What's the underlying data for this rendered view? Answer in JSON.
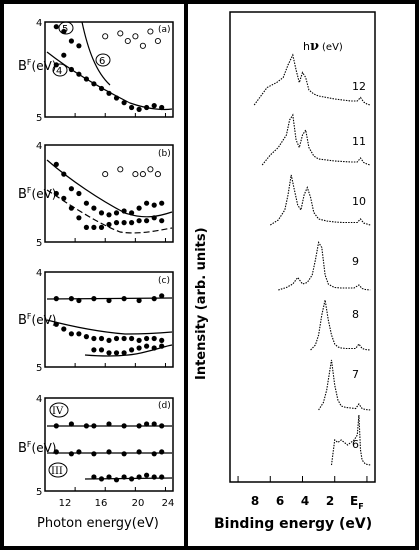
{
  "left_figure": {
    "xlabel": "Photon energy(eV)",
    "ylabel_main": "B",
    "ylabel_sup": "F",
    "ylabel_unit": "(eV)",
    "x_ticks": [
      "12",
      "16",
      "20",
      "24"
    ],
    "y_ticks": [
      "4",
      "5"
    ]
  },
  "right_figure": {
    "ylabel": "Intensity (arb. units)",
    "xlabel": "Binding energy (eV)",
    "x_ticks": [
      "8",
      "6",
      "4",
      "2",
      "E"
    ],
    "ef_sub": "F",
    "legend_prefix": "h",
    "legend_nu": "ν",
    "legend_unit": "(eV)"
  },
  "chart_data": [
    {
      "type": "scatter",
      "panel": "(a)",
      "xlim": [
        8,
        25
      ],
      "ylim": [
        5,
        4
      ],
      "annotations": [
        "5",
        "4",
        "6"
      ],
      "series": [
        {
          "marker": "filled",
          "x": [
            9.5,
            10.5,
            11.5,
            12.5,
            13.5,
            14.5,
            15.5,
            16.5,
            17.5,
            18.5,
            19.5,
            20.5,
            21.5,
            22.5,
            23.5
          ],
          "y": [
            4.45,
            4.35,
            4.5,
            4.55,
            4.6,
            4.65,
            4.7,
            4.75,
            4.8,
            4.85,
            4.9,
            4.92,
            4.9,
            4.88,
            4.9
          ]
        },
        {
          "marker": "filled",
          "x": [
            9.5,
            10.5,
            11.5,
            12.5
          ],
          "y": [
            4.05,
            4.1,
            4.2,
            4.25
          ]
        },
        {
          "marker": "open",
          "x": [
            16,
            18,
            19,
            20,
            21,
            22,
            23
          ],
          "y": [
            4.15,
            4.12,
            4.2,
            4.15,
            4.25,
            4.1,
            4.2
          ]
        }
      ]
    },
    {
      "type": "scatter",
      "panel": "(b)",
      "xlim": [
        8,
        25
      ],
      "ylim": [
        5,
        4
      ],
      "series": [
        {
          "marker": "filled",
          "x": [
            9.5,
            10.5,
            11.5,
            12.5,
            13.5,
            14.5,
            15.5,
            16.5,
            17.5,
            18.5,
            19.5,
            20.5,
            21.5,
            22.5,
            23.5
          ],
          "y": [
            4.2,
            4.3,
            4.45,
            4.5,
            4.6,
            4.65,
            4.7,
            4.72,
            4.7,
            4.68,
            4.7,
            4.65,
            4.6,
            4.62,
            4.6
          ]
        },
        {
          "marker": "filled",
          "x": [
            9.5,
            10.5,
            11.5,
            12.5,
            13.5,
            14.5,
            15.5,
            16.5,
            17.5,
            18.5,
            19.5,
            20.5,
            21.5,
            22.5,
            23.5
          ],
          "y": [
            4.5,
            4.55,
            4.65,
            4.75,
            4.85,
            4.85,
            4.85,
            4.82,
            4.8,
            4.8,
            4.8,
            4.78,
            4.78,
            4.75,
            4.78
          ]
        },
        {
          "marker": "open",
          "x": [
            16,
            18,
            20,
            21,
            22,
            23
          ],
          "y": [
            4.3,
            4.25,
            4.3,
            4.3,
            4.25,
            4.3
          ]
        }
      ]
    },
    {
      "type": "scatter",
      "panel": "(c)",
      "xlim": [
        8,
        25
      ],
      "ylim": [
        5,
        4
      ],
      "series": [
        {
          "marker": "filled",
          "x": [
            9.5,
            11.5,
            12.5,
            14.5,
            16.5,
            18.5,
            20.5,
            22.5,
            23.5
          ],
          "y": [
            4.28,
            4.28,
            4.3,
            4.28,
            4.3,
            4.28,
            4.3,
            4.28,
            4.25
          ]
        },
        {
          "marker": "filled",
          "x": [
            9.5,
            10.5,
            11.5,
            12.5,
            13.5,
            14.5,
            15.5,
            16.5,
            17.5,
            18.5,
            19.5,
            20.5,
            21.5,
            22.5,
            23.5
          ],
          "y": [
            4.55,
            4.6,
            4.65,
            4.65,
            4.68,
            4.7,
            4.7,
            4.72,
            4.7,
            4.7,
            4.7,
            4.72,
            4.7,
            4.7,
            4.72
          ]
        },
        {
          "marker": "filled",
          "x": [
            14.5,
            15.5,
            16.5,
            17.5,
            18.5,
            19.5,
            20.5,
            21.5,
            22.5,
            23.5
          ],
          "y": [
            4.82,
            4.82,
            4.85,
            4.85,
            4.85,
            4.82,
            4.8,
            4.78,
            4.8,
            4.78
          ]
        }
      ]
    },
    {
      "type": "scatter",
      "panel": "(d)",
      "xlim": [
        8,
        25
      ],
      "ylim": [
        5,
        4
      ],
      "annotations": [
        "IV",
        "III"
      ],
      "series": [
        {
          "marker": "filled",
          "x": [
            9.5,
            11.5,
            13.5,
            14.5,
            16.5,
            18.5,
            20.5,
            21.5,
            22.5,
            23.5
          ],
          "y": [
            4.3,
            4.28,
            4.3,
            4.3,
            4.28,
            4.3,
            4.3,
            4.28,
            4.28,
            4.3
          ]
        },
        {
          "marker": "filled",
          "x": [
            9.5,
            11.5,
            12.5,
            14.5,
            16.5,
            18.5,
            20.5,
            22.5,
            23.5
          ],
          "y": [
            4.58,
            4.6,
            4.58,
            4.6,
            4.58,
            4.6,
            4.58,
            4.6,
            4.58
          ]
        },
        {
          "marker": "filled",
          "x": [
            14.5,
            15.5,
            16.5,
            17.5,
            18.5,
            19.5,
            20.5,
            21.5,
            22.5,
            23.5
          ],
          "y": [
            4.85,
            4.87,
            4.85,
            4.88,
            4.85,
            4.87,
            4.85,
            4.83,
            4.85,
            4.85
          ]
        }
      ]
    },
    {
      "type": "line",
      "title": "",
      "xlabel": "Binding energy (eV)",
      "ylabel": "Intensity (arb. units)",
      "xlim": [
        8.5,
        -0.5
      ],
      "x_ticks": [
        8,
        6,
        4,
        2,
        0
      ],
      "series": [
        {
          "name": "12",
          "x": [
            7.0,
            6.2,
            5.6,
            5.2,
            4.9,
            4.6,
            4.4,
            4.2,
            4.0,
            3.8,
            3.6,
            3.3,
            3.0,
            2.5,
            2.0,
            1.5,
            1.0,
            0.6,
            0.4,
            0.2,
            0.0,
            -0.2
          ],
          "y": [
            0.0,
            0.35,
            0.45,
            0.55,
            0.8,
            1.0,
            0.7,
            0.45,
            0.65,
            0.55,
            0.3,
            0.22,
            0.18,
            0.15,
            0.12,
            0.1,
            0.08,
            0.08,
            0.15,
            0.06,
            0.02,
            0.0
          ]
        },
        {
          "name": "11",
          "x": [
            6.5,
            6.0,
            5.5,
            5.0,
            4.8,
            4.6,
            4.4,
            4.2,
            4.0,
            3.8,
            3.6,
            3.3,
            3.0,
            2.5,
            2.0,
            1.5,
            1.0,
            0.6,
            0.4,
            0.2,
            0.0,
            -0.2
          ],
          "y": [
            0.0,
            0.2,
            0.35,
            0.6,
            0.9,
            1.0,
            0.5,
            0.35,
            0.6,
            0.7,
            0.35,
            0.18,
            0.12,
            0.1,
            0.08,
            0.07,
            0.06,
            0.06,
            0.14,
            0.05,
            0.02,
            0.0
          ]
        },
        {
          "name": "10",
          "x": [
            6.0,
            5.5,
            5.1,
            4.9,
            4.7,
            4.5,
            4.3,
            4.1,
            3.9,
            3.7,
            3.5,
            3.3,
            3.0,
            2.5,
            2.0,
            1.5,
            1.0,
            0.6,
            0.4,
            0.2,
            0.0,
            -0.2
          ],
          "y": [
            0.0,
            0.1,
            0.3,
            0.6,
            1.0,
            0.7,
            0.4,
            0.3,
            0.6,
            0.75,
            0.55,
            0.25,
            0.12,
            0.08,
            0.06,
            0.05,
            0.05,
            0.05,
            0.12,
            0.04,
            0.02,
            0.0
          ]
        },
        {
          "name": "9",
          "x": [
            5.5,
            5.0,
            4.6,
            4.3,
            4.0,
            3.7,
            3.4,
            3.2,
            3.0,
            2.8,
            2.6,
            2.4,
            2.2,
            2.0,
            1.6,
            1.2,
            0.8,
            0.5,
            0.3,
            0.1,
            -0.2
          ],
          "y": [
            0.0,
            0.05,
            0.12,
            0.25,
            0.12,
            0.15,
            0.3,
            0.6,
            0.95,
            0.85,
            0.3,
            0.12,
            0.08,
            0.05,
            0.04,
            0.04,
            0.04,
            0.1,
            0.03,
            0.01,
            0.0
          ]
        },
        {
          "name": "8",
          "x": [
            3.5,
            3.2,
            3.0,
            2.8,
            2.6,
            2.4,
            2.2,
            2.0,
            1.8,
            1.6,
            1.3,
            1.0,
            0.7,
            0.5,
            0.3,
            0.1,
            -0.2
          ],
          "y": [
            0.0,
            0.1,
            0.3,
            0.7,
            1.0,
            0.6,
            0.3,
            0.12,
            0.06,
            0.04,
            0.03,
            0.03,
            0.03,
            0.12,
            0.03,
            0.01,
            0.0
          ]
        },
        {
          "name": "7",
          "x": [
            3.0,
            2.7,
            2.5,
            2.3,
            2.2,
            2.0,
            1.8,
            1.6,
            1.3,
            1.0,
            0.7,
            0.5,
            0.3,
            0.1,
            -0.2
          ],
          "y": [
            0.0,
            0.15,
            0.4,
            0.8,
            1.0,
            0.5,
            0.2,
            0.08,
            0.05,
            0.04,
            0.03,
            0.12,
            0.03,
            0.01,
            0.0
          ]
        },
        {
          "name": "6",
          "x": [
            2.2,
            2.0,
            1.8,
            1.6,
            1.4,
            1.2,
            1.0,
            0.8,
            0.6,
            0.5,
            0.4,
            0.3,
            0.1,
            -0.2
          ],
          "y": [
            0.0,
            0.5,
            0.45,
            0.5,
            0.45,
            0.4,
            0.45,
            0.5,
            0.6,
            1.0,
            0.3,
            0.1,
            0.02,
            0.0
          ]
        }
      ]
    }
  ]
}
